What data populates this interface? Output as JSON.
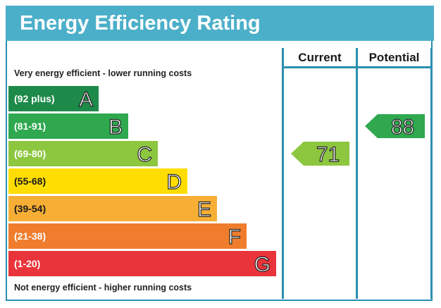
{
  "header": {
    "title": "Energy Efficiency Rating"
  },
  "columns": {
    "current": "Current",
    "potential": "Potential"
  },
  "notes": {
    "top": "Very energy efficient - lower running costs",
    "bottom": "Not energy efficient - higher running costs"
  },
  "chart_data": {
    "type": "bar",
    "title": "Energy Efficiency Rating",
    "bands": [
      {
        "letter": "A",
        "range": "(92 plus)",
        "color": "#1e8a4a"
      },
      {
        "letter": "B",
        "range": "(81-91)",
        "color": "#2fa84f"
      },
      {
        "letter": "C",
        "range": "(69-80)",
        "color": "#8dc63f"
      },
      {
        "letter": "D",
        "range": "(55-68)",
        "color": "#ffdd00"
      },
      {
        "letter": "E",
        "range": "(39-54)",
        "color": "#f6ae35"
      },
      {
        "letter": "F",
        "range": "(21-38)",
        "color": "#ef7d2d"
      },
      {
        "letter": "G",
        "range": "(1-20)",
        "color": "#e9343b"
      }
    ],
    "current": {
      "value": "71",
      "band": "C",
      "color": "#8dc63f"
    },
    "potential": {
      "value": "88",
      "band": "B",
      "color": "#2fa84f"
    }
  }
}
